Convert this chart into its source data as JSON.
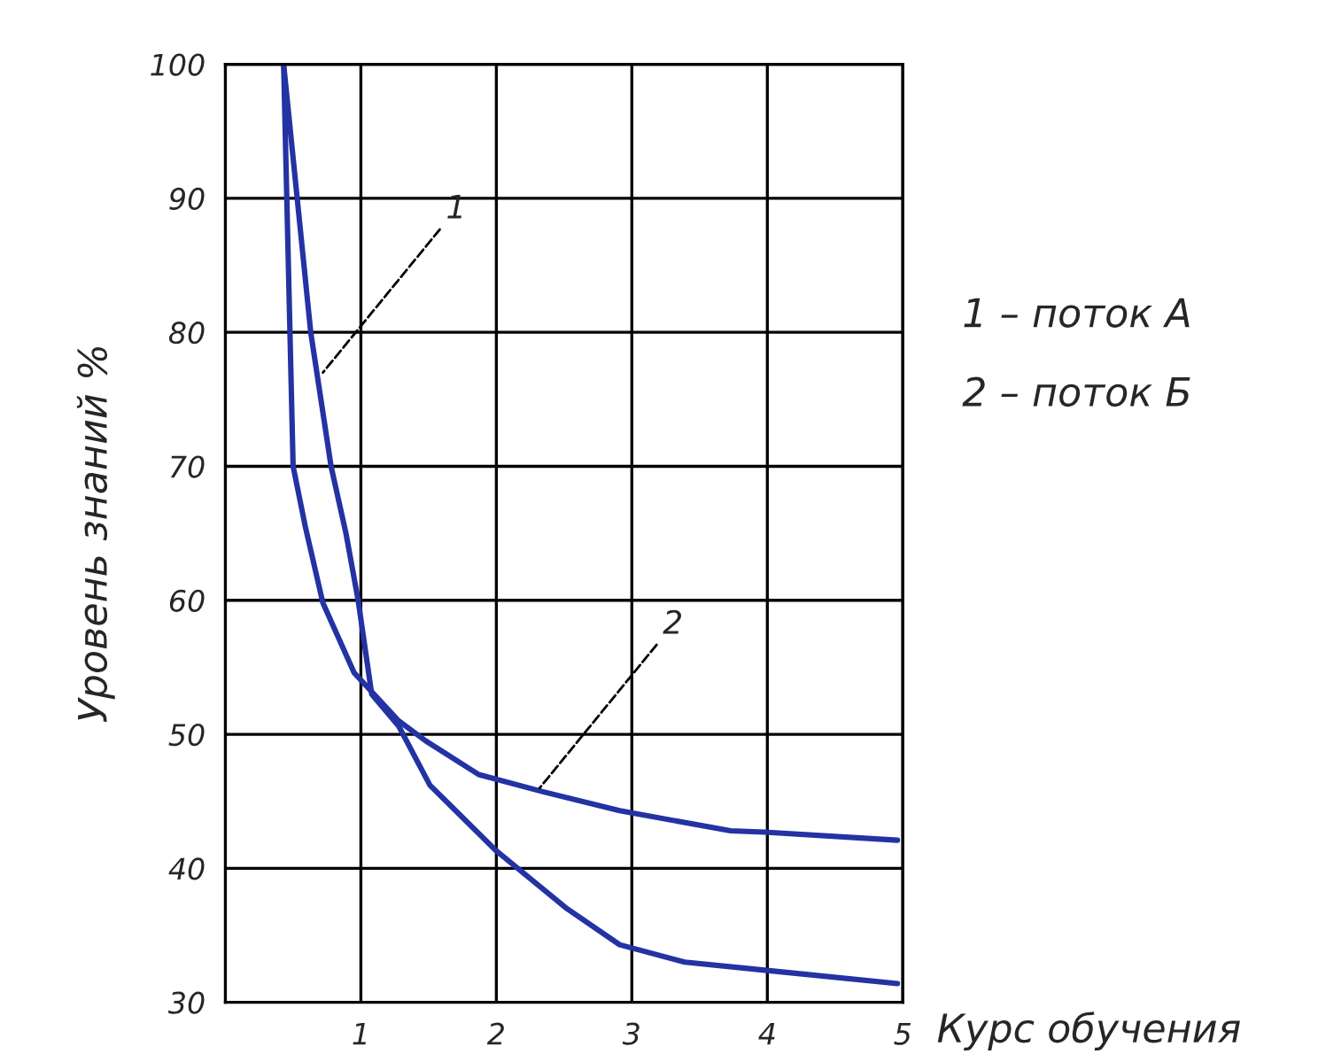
{
  "chart_data": {
    "type": "line",
    "xlabel": "Курс обучения",
    "ylabel": "Уровень знаний %",
    "xlim": [
      0,
      5
    ],
    "xticks": [
      1,
      2,
      3,
      4,
      5
    ],
    "ylim": [
      30,
      100
    ],
    "yticks": [
      30,
      40,
      50,
      60,
      70,
      80,
      90,
      100
    ],
    "grid": true,
    "marker": "none",
    "line_style": "solid",
    "series": [
      {
        "color": "#2333a3",
        "x": [
          0.43,
          0.63,
          0.78,
          0.89,
          0.98,
          1.08,
          1.28,
          1.51,
          2.0,
          2.52,
          2.91,
          3.39,
          3.98,
          4.96
        ],
        "values": [
          100,
          80,
          70,
          65,
          60,
          53,
          50.6,
          46.2,
          41.3,
          37,
          34.3,
          33,
          32.4,
          31.4
        ]
      },
      {
        "color": "#2333a3",
        "x": [
          0.43,
          0.5,
          0.59,
          0.72,
          0.95,
          1.28,
          1.48,
          1.87,
          2.35,
          2.91,
          3.73,
          3.98,
          4.96
        ],
        "values": [
          100,
          70,
          65.5,
          59.8,
          54.6,
          51,
          49.5,
          47,
          45.7,
          44.3,
          42.8,
          42.7,
          42.1
        ]
      }
    ],
    "annotations": [
      {
        "text": "1",
        "x": 0.72,
        "y": 77
      },
      {
        "text": "2",
        "x": 2.32,
        "y": 46
      },
      "1 – поток А",
      "2 – поток Б"
    ]
  }
}
